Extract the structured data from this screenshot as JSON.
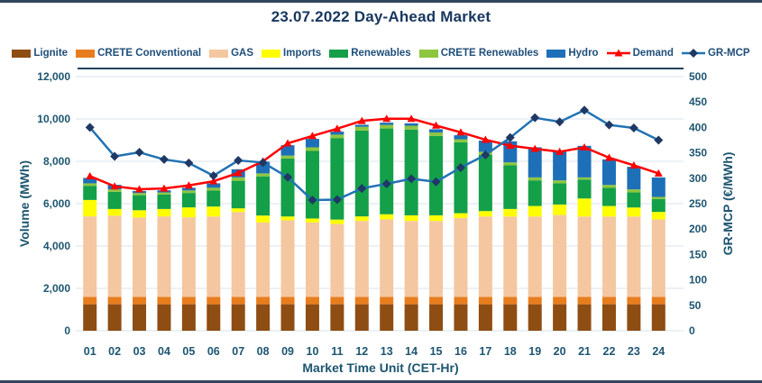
{
  "colors": {
    "title_text": "#17365d",
    "axis_text": "#1d5570",
    "legend_text": "#1f4e79",
    "gridline": "#dae3eb",
    "plot_top_border": "#24425c",
    "slide_edge": "#32455c",
    "background": "#ffffff"
  },
  "legend": {
    "items": [
      {
        "id": "lignite",
        "label": "Lignite",
        "swatch": "box",
        "color": "#8e4d13"
      },
      {
        "id": "crete-conventional",
        "label": "CRETE Conventional",
        "swatch": "box",
        "color": "#e87d1e"
      },
      {
        "id": "gas",
        "label": "GAS",
        "swatch": "box",
        "color": "#f4c7a0"
      },
      {
        "id": "imports",
        "label": "Imports",
        "swatch": "box",
        "color": "#fefe00"
      },
      {
        "id": "renewables",
        "label": "Renewables",
        "swatch": "box",
        "color": "#13a049"
      },
      {
        "id": "crete-renewables",
        "label": "CRETE Renewables",
        "swatch": "box",
        "color": "#8dc63f"
      },
      {
        "id": "hydro",
        "label": "Hydro",
        "swatch": "box",
        "color": "#1d70b8"
      },
      {
        "id": "demand",
        "label": "Demand",
        "swatch": "line-triangle",
        "color": "#fe0000"
      },
      {
        "id": "gr-mcp",
        "label": "GR-MCP",
        "swatch": "line-diamond",
        "color": "#2173b4",
        "marker_color": "#1f3864"
      }
    ]
  },
  "axes": {
    "y_left": {
      "title": "Volume (MWh)",
      "min": 0,
      "max": 12000,
      "step": 2000,
      "tick_labels": [
        "0",
        "2,000",
        "4,000",
        "6,000",
        "8,000",
        "10,000",
        "12,000"
      ]
    },
    "y_right": {
      "title": "GR-MCP (€/MWh)",
      "min": 0,
      "max": 500,
      "step": 50,
      "tick_labels": [
        "0",
        "50",
        "100",
        "150",
        "200",
        "250",
        "300",
        "350",
        "400",
        "450",
        "500"
      ]
    },
    "x": {
      "title": "Market Time Unit (CET-Hr)"
    }
  },
  "chart_data": {
    "type": "combo-stacked-bar-line",
    "title": "23.07.2022  Day-Ahead Market",
    "xlabel": "Market Time Unit (CET-Hr)",
    "ylabel_left": "Volume (MWh)",
    "ylabel_right": "GR-MCP (€/MWh)",
    "ylim_left": [
      0,
      12000
    ],
    "ylim_right": [
      0,
      500
    ],
    "grid": true,
    "legend_position": "top",
    "categories": [
      "01",
      "02",
      "03",
      "04",
      "05",
      "06",
      "07",
      "08",
      "09",
      "10",
      "11",
      "12",
      "13",
      "14",
      "15",
      "16",
      "17",
      "18",
      "19",
      "20",
      "21",
      "22",
      "23",
      "24"
    ],
    "stacked_bars": {
      "axis": "left",
      "series": [
        {
          "name": "Lignite",
          "color": "#8e4d13",
          "values": [
            1250,
            1250,
            1250,
            1250,
            1250,
            1250,
            1250,
            1250,
            1250,
            1250,
            1250,
            1250,
            1250,
            1250,
            1250,
            1250,
            1250,
            1250,
            1250,
            1250,
            1250,
            1250,
            1250,
            1250
          ]
        },
        {
          "name": "CRETE Conventional",
          "color": "#e87d1e",
          "values": [
            350,
            350,
            350,
            350,
            350,
            350,
            350,
            350,
            350,
            350,
            350,
            350,
            350,
            350,
            350,
            350,
            350,
            350,
            350,
            350,
            350,
            350,
            350,
            350
          ]
        },
        {
          "name": "GAS",
          "color": "#f4c7a0",
          "values": [
            3800,
            3830,
            3750,
            3800,
            3755,
            3795,
            4010,
            3510,
            3615,
            3510,
            3440,
            3585,
            3655,
            3585,
            3585,
            3725,
            3795,
            3795,
            3795,
            3865,
            3795,
            3795,
            3795,
            3655
          ]
        },
        {
          "name": "Imports",
          "color": "#fefe00",
          "values": [
            775,
            320,
            340,
            350,
            470,
            470,
            170,
            330,
            180,
            190,
            210,
            215,
            245,
            265,
            265,
            225,
            255,
            355,
            495,
            495,
            850,
            495,
            425,
            355
          ]
        },
        {
          "name": "Renewables",
          "color": "#13a049",
          "values": [
            670,
            810,
            710,
            680,
            680,
            755,
            1300,
            1850,
            2735,
            3190,
            3850,
            4050,
            4050,
            4050,
            3750,
            3350,
            2650,
            2060,
            1210,
            1000,
            895,
            855,
            710,
            605
          ]
        },
        {
          "name": "CRETE Renewables",
          "color": "#8dc63f",
          "values": [
            115,
            115,
            100,
            100,
            120,
            130,
            160,
            140,
            140,
            170,
            160,
            180,
            170,
            180,
            160,
            140,
            150,
            140,
            140,
            140,
            100,
            140,
            145,
            105
          ]
        },
        {
          "name": "Hydro",
          "color": "#1d70b8",
          "values": [
            255,
            215,
            100,
            100,
            125,
            210,
            385,
            550,
            490,
            400,
            140,
            95,
            105,
            115,
            155,
            190,
            525,
            995,
            1420,
            1350,
            1490,
            1205,
            1065,
            920
          ]
        }
      ]
    },
    "lines": [
      {
        "name": "Demand",
        "axis": "left",
        "marker": "triangle",
        "line_color": "#fe0000",
        "marker_color": "#fe0000",
        "values": [
          7300,
          6820,
          6680,
          6720,
          6860,
          7060,
          7450,
          8000,
          8850,
          9200,
          9540,
          9910,
          10010,
          10010,
          9690,
          9370,
          9020,
          8740,
          8590,
          8450,
          8660,
          8170,
          7810,
          7430
        ]
      },
      {
        "name": "GR-MCP",
        "axis": "right",
        "marker": "diamond",
        "line_color": "#2173b4",
        "marker_color": "#1f3864",
        "values": [
          400,
          343,
          351,
          337,
          330,
          305,
          335,
          331,
          302,
          257,
          258,
          280,
          289,
          299,
          293,
          321,
          346,
          380,
          419,
          411,
          434,
          405,
          399,
          375
        ]
      }
    ]
  }
}
